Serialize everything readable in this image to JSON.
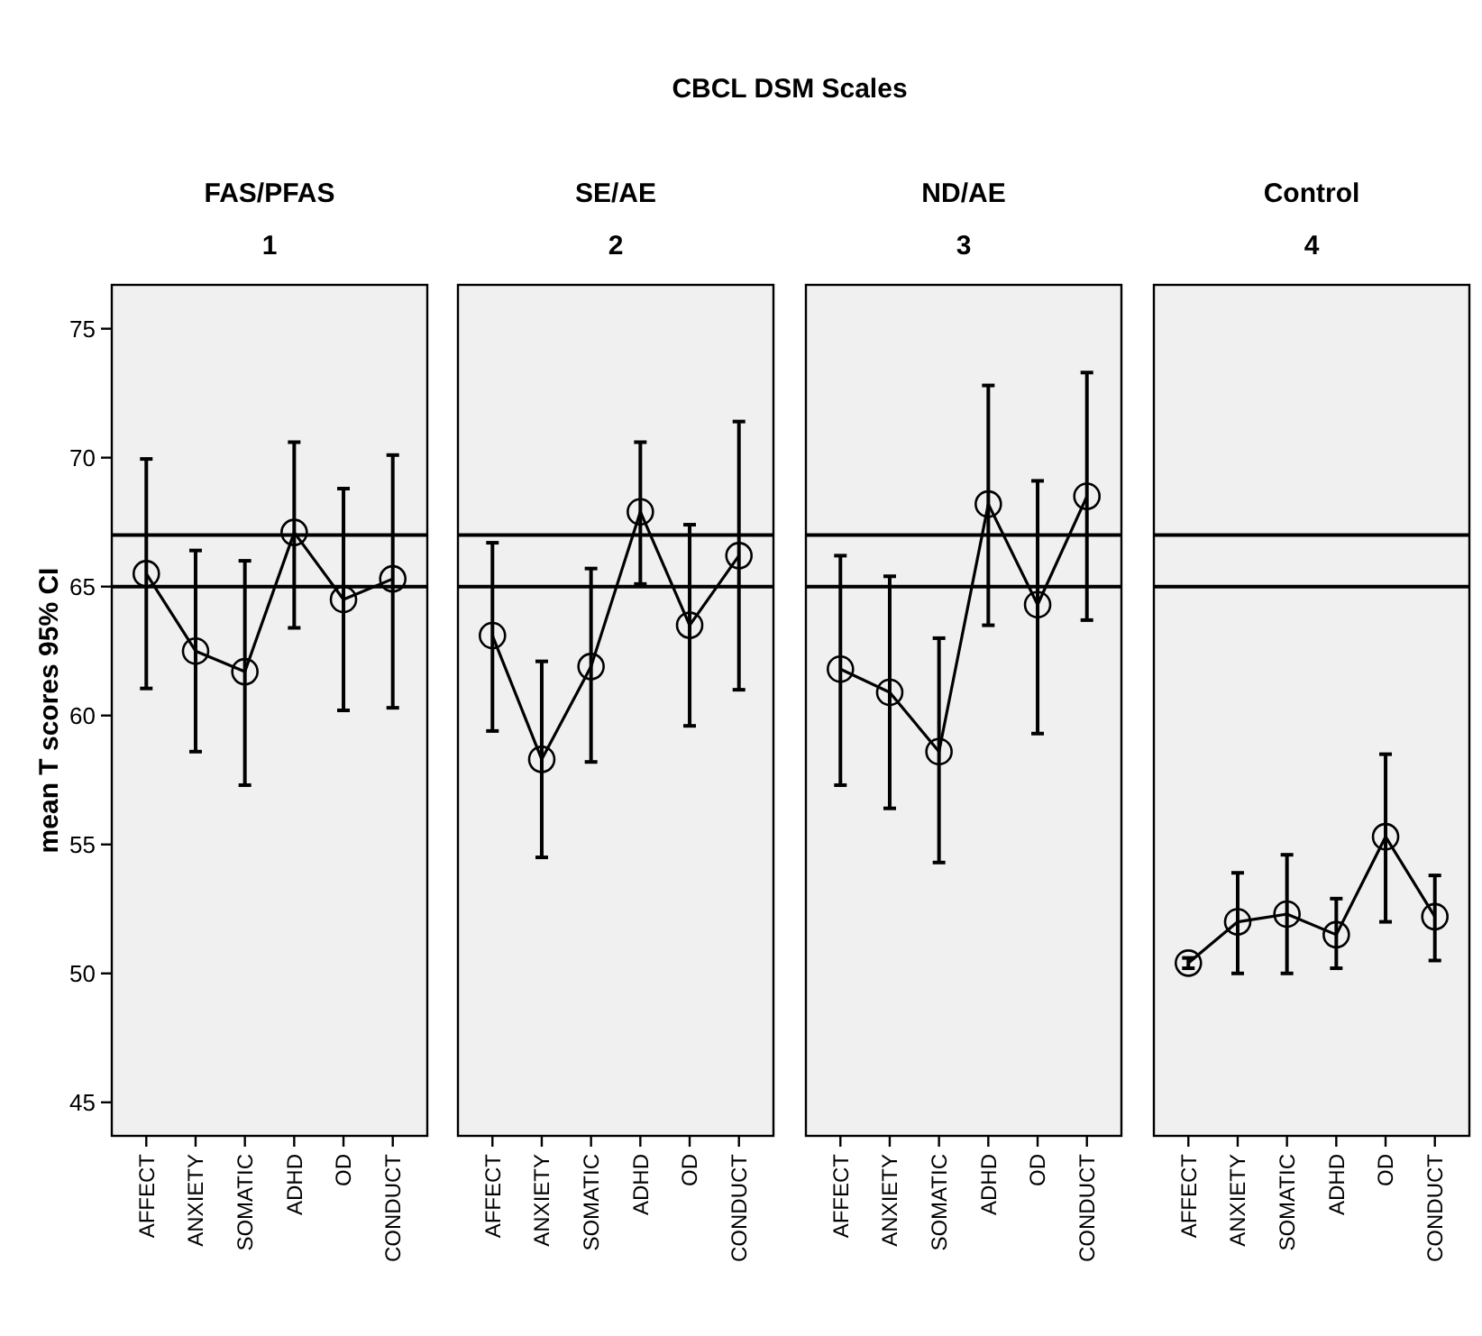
{
  "chart_data": [
    {
      "type": "line",
      "title": "FAS/PFAS",
      "subtitle": "1",
      "ylabel": "mean T scores 95% CI",
      "annotations": [
        "CBCL DSM Scales"
      ],
      "categories": [
        "AFFECT",
        "ANXIETY",
        "SOMATIC",
        "ADHD",
        "OD",
        "CONDUCT"
      ],
      "series": [
        {
          "color": "#000000",
          "values": [
            65.5,
            62.5,
            61.7,
            67.1,
            64.5,
            65.3
          ],
          "errors": [
            [
              61.05,
              69.95
            ],
            [
              58.6,
              66.4
            ],
            [
              57.3,
              66.0
            ],
            [
              63.4,
              70.6
            ],
            [
              60.2,
              68.8
            ],
            [
              60.3,
              70.1
            ]
          ]
        }
      ],
      "ylim": [
        43.7,
        76.7
      ],
      "yticks": [
        45,
        50,
        55,
        60,
        65,
        70,
        75
      ],
      "marker": "circle",
      "line_style": "solid",
      "ref_lines": [
        {
          "axis": "y",
          "value": 67,
          "color": "#000000"
        },
        {
          "axis": "y",
          "value": 65,
          "color": "#000000"
        }
      ]
    },
    {
      "type": "line",
      "title": "SE/AE",
      "subtitle": "2",
      "categories": [
        "AFFECT",
        "ANXIETY",
        "SOMATIC",
        "ADHD",
        "OD",
        "CONDUCT"
      ],
      "series": [
        {
          "color": "#000000",
          "values": [
            63.1,
            58.3,
            61.9,
            67.9,
            63.5,
            66.2
          ],
          "errors": [
            [
              59.4,
              66.7
            ],
            [
              54.5,
              62.1
            ],
            [
              58.2,
              65.7
            ],
            [
              65.1,
              70.6
            ],
            [
              59.6,
              67.4
            ],
            [
              61.0,
              71.4
            ]
          ]
        }
      ],
      "ylim": [
        43.7,
        76.7
      ],
      "tick_labels": "x",
      "marker": "circle",
      "line_style": "solid",
      "ref_lines": [
        {
          "axis": "y",
          "value": 67,
          "color": "#000000"
        },
        {
          "axis": "y",
          "value": 65,
          "color": "#000000"
        }
      ]
    },
    {
      "type": "line",
      "title": "ND/AE",
      "subtitle": "3",
      "categories": [
        "AFFECT",
        "ANXIETY",
        "SOMATIC",
        "ADHD",
        "OD",
        "CONDUCT"
      ],
      "series": [
        {
          "color": "#000000",
          "values": [
            61.8,
            60.9,
            58.6,
            68.2,
            64.3,
            68.5
          ],
          "errors": [
            [
              57.3,
              66.2
            ],
            [
              56.4,
              65.4
            ],
            [
              54.3,
              63.0
            ],
            [
              63.5,
              72.8
            ],
            [
              59.3,
              69.1
            ],
            [
              63.7,
              73.3
            ]
          ]
        }
      ],
      "ylim": [
        43.7,
        76.7
      ],
      "tick_labels": "x",
      "marker": "circle",
      "line_style": "solid",
      "ref_lines": [
        {
          "axis": "y",
          "value": 67,
          "color": "#000000"
        },
        {
          "axis": "y",
          "value": 65,
          "color": "#000000"
        }
      ]
    },
    {
      "type": "line",
      "title": "Control",
      "subtitle": "4",
      "categories": [
        "AFFECT",
        "ANXIETY",
        "SOMATIC",
        "ADHD",
        "OD",
        "CONDUCT"
      ],
      "series": [
        {
          "color": "#000000",
          "values": [
            50.4,
            52.0,
            52.3,
            51.5,
            55.3,
            52.2
          ],
          "errors": [
            [
              50.2,
              50.6
            ],
            [
              50.0,
              53.9
            ],
            [
              50.0,
              54.6
            ],
            [
              50.2,
              52.9
            ],
            [
              52.0,
              58.5
            ],
            [
              50.5,
              53.8
            ]
          ]
        }
      ],
      "ylim": [
        43.7,
        76.7
      ],
      "tick_labels": "x",
      "marker": "circle",
      "line_style": "solid",
      "ref_lines": [
        {
          "axis": "y",
          "value": 67,
          "color": "#000000"
        },
        {
          "axis": "y",
          "value": 65,
          "color": "#000000"
        }
      ]
    }
  ]
}
